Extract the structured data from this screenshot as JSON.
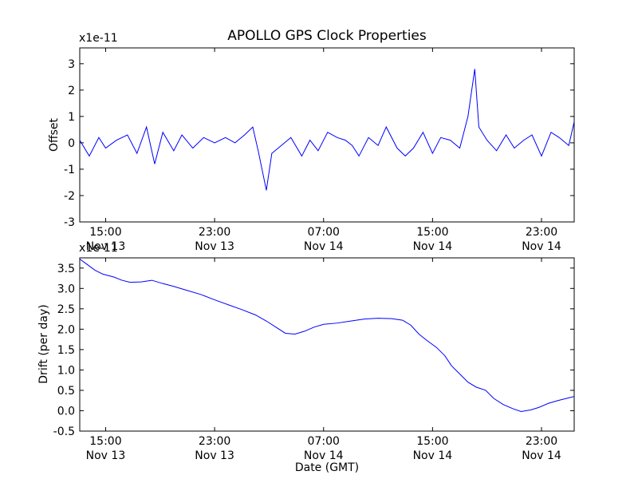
{
  "chart_data": [
    {
      "type": "line",
      "title": "APOLLO GPS Clock Properties",
      "ylabel": "Offset",
      "xlabel": "",
      "y_scale_label": "x1e-11",
      "ylim": [
        -3,
        3.6
      ],
      "y_ticks": [
        "-3",
        "-2",
        "-1",
        "0",
        "1",
        "2",
        "3"
      ],
      "x_ticks": [
        {
          "time": "15:00",
          "date": "Nov 13"
        },
        {
          "time": "23:00",
          "date": "Nov 13"
        },
        {
          "time": "07:00",
          "date": "Nov 14"
        },
        {
          "time": "15:00",
          "date": "Nov 14"
        },
        {
          "time": "23:00",
          "date": "Nov 14"
        }
      ],
      "x_range_hours_from_tick0": [
        -1.9,
        34.4
      ],
      "grid": false,
      "line_color": "#0000ff",
      "series": [
        {
          "name": "",
          "points": [
            [
              -1.9,
              0.1
            ],
            [
              -1.2,
              -0.5
            ],
            [
              -0.5,
              0.2
            ],
            [
              0.0,
              -0.2
            ],
            [
              0.8,
              0.1
            ],
            [
              1.6,
              0.3
            ],
            [
              2.3,
              -0.4
            ],
            [
              3.0,
              0.6
            ],
            [
              3.6,
              -0.8
            ],
            [
              4.2,
              0.4
            ],
            [
              5.0,
              -0.3
            ],
            [
              5.6,
              0.3
            ],
            [
              6.4,
              -0.2
            ],
            [
              7.2,
              0.2
            ],
            [
              8.0,
              0.0
            ],
            [
              8.8,
              0.2
            ],
            [
              9.5,
              0.0
            ],
            [
              10.2,
              0.3
            ],
            [
              10.8,
              0.6
            ],
            [
              11.2,
              -0.3
            ],
            [
              11.8,
              -1.8
            ],
            [
              12.2,
              -0.4
            ],
            [
              12.9,
              -0.1
            ],
            [
              13.6,
              0.2
            ],
            [
              14.4,
              -0.5
            ],
            [
              15.0,
              0.1
            ],
            [
              15.6,
              -0.3
            ],
            [
              16.3,
              0.4
            ],
            [
              17.0,
              0.2
            ],
            [
              17.6,
              0.1
            ],
            [
              18.1,
              -0.1
            ],
            [
              18.6,
              -0.5
            ],
            [
              19.3,
              0.2
            ],
            [
              20.0,
              -0.1
            ],
            [
              20.6,
              0.6
            ],
            [
              21.4,
              -0.2
            ],
            [
              22.0,
              -0.5
            ],
            [
              22.6,
              -0.2
            ],
            [
              23.3,
              0.4
            ],
            [
              24.0,
              -0.4
            ],
            [
              24.6,
              0.2
            ],
            [
              25.3,
              0.1
            ],
            [
              26.0,
              -0.2
            ],
            [
              26.6,
              1.0
            ],
            [
              27.1,
              2.8
            ],
            [
              27.4,
              0.6
            ],
            [
              28.0,
              0.1
            ],
            [
              28.7,
              -0.3
            ],
            [
              29.4,
              0.3
            ],
            [
              30.0,
              -0.2
            ],
            [
              30.7,
              0.1
            ],
            [
              31.3,
              0.3
            ],
            [
              32.0,
              -0.5
            ],
            [
              32.7,
              0.4
            ],
            [
              33.3,
              0.2
            ],
            [
              34.0,
              -0.1
            ],
            [
              34.4,
              0.8
            ]
          ]
        }
      ]
    },
    {
      "type": "line",
      "title": "",
      "ylabel": "Drift (per day)",
      "xlabel": "Date (GMT)",
      "y_scale_label": "x1e-11",
      "ylim": [
        -0.5,
        3.75
      ],
      "y_ticks": [
        "-0.5",
        "0.0",
        "0.5",
        "1.0",
        "1.5",
        "2.0",
        "2.5",
        "3.0",
        "3.5"
      ],
      "x_ticks": [
        {
          "time": "15:00",
          "date": "Nov 13"
        },
        {
          "time": "23:00",
          "date": "Nov 13"
        },
        {
          "time": "07:00",
          "date": "Nov 14"
        },
        {
          "time": "15:00",
          "date": "Nov 14"
        },
        {
          "time": "23:00",
          "date": "Nov 14"
        }
      ],
      "x_range_hours_from_tick0": [
        -1.9,
        34.4
      ],
      "grid": false,
      "line_color": "#0000ff",
      "series": [
        {
          "name": "",
          "points": [
            [
              -1.9,
              3.72
            ],
            [
              -1.4,
              3.6
            ],
            [
              -0.8,
              3.45
            ],
            [
              -0.2,
              3.35
            ],
            [
              0.6,
              3.28
            ],
            [
              1.2,
              3.2
            ],
            [
              1.8,
              3.15
            ],
            [
              2.6,
              3.16
            ],
            [
              3.4,
              3.2
            ],
            [
              4.2,
              3.12
            ],
            [
              5.0,
              3.05
            ],
            [
              6.0,
              2.95
            ],
            [
              7.0,
              2.85
            ],
            [
              8.0,
              2.72
            ],
            [
              9.0,
              2.6
            ],
            [
              10.0,
              2.48
            ],
            [
              11.0,
              2.35
            ],
            [
              11.8,
              2.2
            ],
            [
              12.5,
              2.05
            ],
            [
              13.2,
              1.9
            ],
            [
              13.9,
              1.88
            ],
            [
              14.6,
              1.95
            ],
            [
              15.3,
              2.05
            ],
            [
              16.0,
              2.12
            ],
            [
              17.0,
              2.15
            ],
            [
              18.0,
              2.2
            ],
            [
              19.0,
              2.25
            ],
            [
              20.0,
              2.27
            ],
            [
              21.0,
              2.26
            ],
            [
              21.8,
              2.22
            ],
            [
              22.4,
              2.1
            ],
            [
              23.0,
              1.88
            ],
            [
              23.6,
              1.72
            ],
            [
              24.3,
              1.55
            ],
            [
              24.9,
              1.35
            ],
            [
              25.4,
              1.1
            ],
            [
              26.0,
              0.9
            ],
            [
              26.6,
              0.7
            ],
            [
              27.2,
              0.58
            ],
            [
              27.9,
              0.5
            ],
            [
              28.5,
              0.3
            ],
            [
              29.2,
              0.15
            ],
            [
              29.9,
              0.05
            ],
            [
              30.5,
              -0.02
            ],
            [
              31.2,
              0.02
            ],
            [
              31.8,
              0.08
            ],
            [
              32.5,
              0.18
            ],
            [
              33.2,
              0.25
            ],
            [
              34.4,
              0.35
            ]
          ]
        }
      ]
    }
  ]
}
